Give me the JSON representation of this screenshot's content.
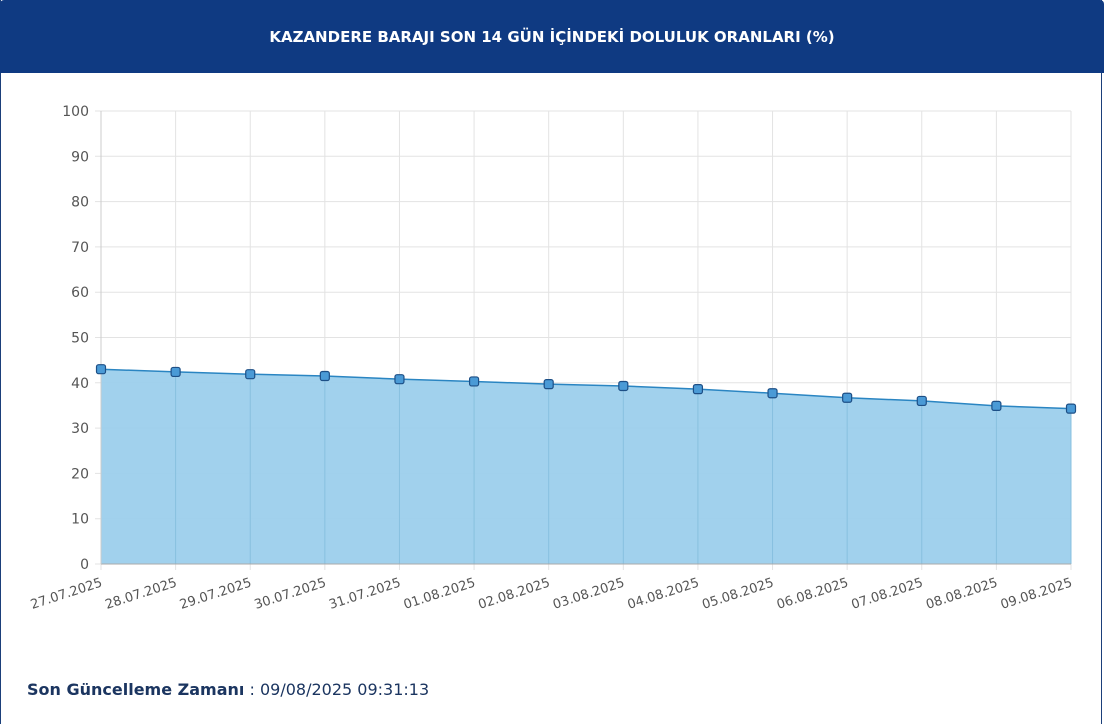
{
  "title": "KAZANDERE BARAJI SON 14 GÜN İÇİNDEKİ DOLULUK ORANLARI (%)",
  "chart_data": {
    "type": "area",
    "title": "KAZANDERE BARAJI SON 14 GÜN İÇİNDEKİ DOLULUK ORANLARI (%)",
    "categories": [
      "27.07.2025",
      "28.07.2025",
      "29.07.2025",
      "30.07.2025",
      "31.07.2025",
      "01.08.2025",
      "02.08.2025",
      "03.08.2025",
      "04.08.2025",
      "05.08.2025",
      "06.08.2025",
      "07.08.2025",
      "08.08.2025",
      "09.08.2025"
    ],
    "values": [
      43.0,
      42.4,
      41.9,
      41.5,
      40.8,
      40.3,
      39.7,
      39.3,
      38.6,
      37.7,
      36.7,
      36.0,
      34.9,
      34.3
    ],
    "ylim": [
      0,
      100
    ],
    "yticks": [
      0,
      10,
      20,
      30,
      40,
      50,
      60,
      70,
      80,
      90,
      100
    ],
    "grid": true,
    "colors": {
      "fill": "#9ccfec",
      "line": "#2a85c2",
      "point": "#4a9ad6",
      "point_border": "#1d4f86"
    }
  },
  "footer": {
    "label": "Son Güncelleme Zamanı",
    "separator": " : ",
    "value": "09/08/2025 09:31:13"
  }
}
